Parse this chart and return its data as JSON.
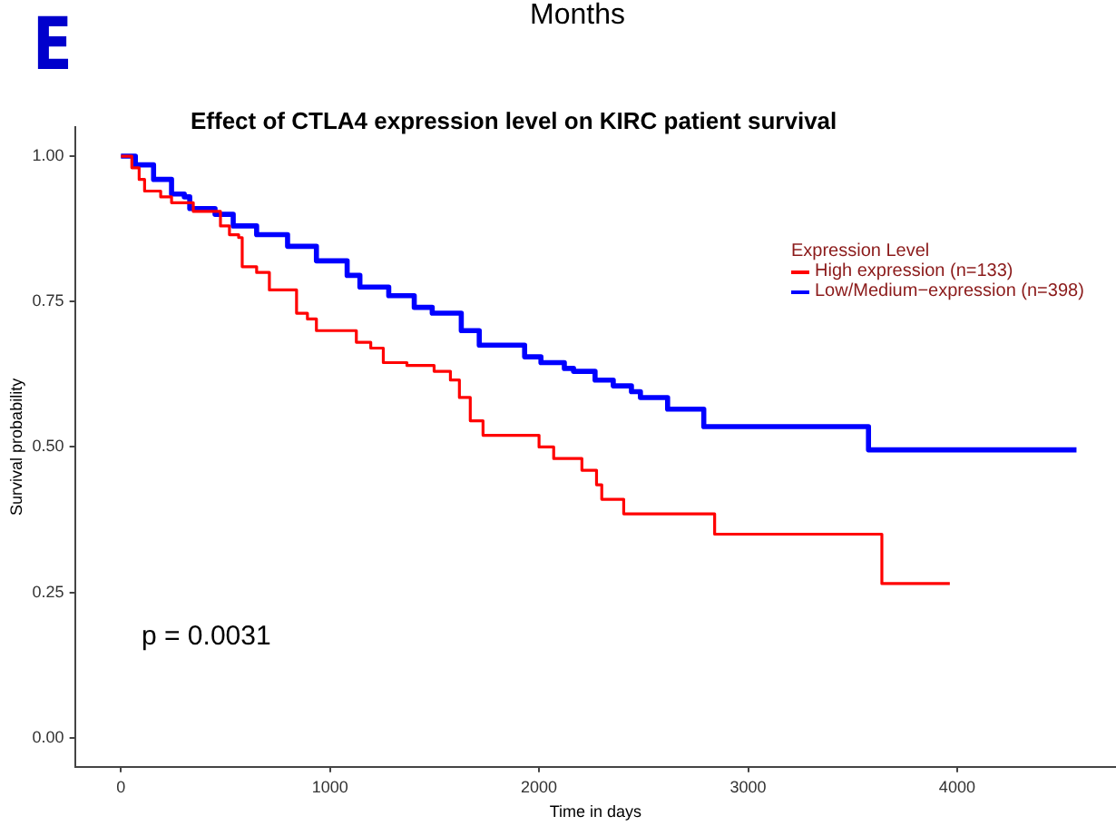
{
  "chart_data": {
    "type": "step",
    "title": "Effect of CTLA4 expression level on KIRC patient survival",
    "xlabel": "Time in days",
    "ylabel": "Survival probability",
    "legend_title": "Expression Level",
    "annotations": [
      "E",
      "Months",
      "p = 0.0031"
    ],
    "series": [
      {
        "name": "High expression (n=133)",
        "color": "#ff0000",
        "x": [
          0,
          52,
          87,
          113,
          190,
          242,
          346,
          476,
          519,
          563,
          580,
          649,
          710,
          840,
          892,
          935,
          1126,
          1195,
          1255,
          1368,
          1498,
          1576,
          1619,
          1671,
          1732,
          2000,
          2070,
          2205,
          2275,
          2300,
          2405,
          2840,
          3640,
          3965
        ],
        "values": [
          1.0,
          0.98,
          0.96,
          0.94,
          0.93,
          0.92,
          0.905,
          0.88,
          0.865,
          0.86,
          0.81,
          0.8,
          0.77,
          0.73,
          0.72,
          0.7,
          0.68,
          0.67,
          0.645,
          0.64,
          0.63,
          0.615,
          0.585,
          0.545,
          0.52,
          0.5,
          0.48,
          0.46,
          0.435,
          0.41,
          0.385,
          0.35,
          0.265,
          0.265
        ]
      },
      {
        "name": "Low/Medium−expression (n=398)",
        "color": "#0000ff",
        "x": [
          0,
          69,
          156,
          242,
          303,
          329,
          450,
          537,
          649,
          797,
          935,
          1082,
          1143,
          1281,
          1403,
          1489,
          1628,
          1714,
          1931,
          2009,
          2121,
          2165,
          2268,
          2355,
          2442,
          2485,
          2615,
          2788,
          3576,
          4571
        ],
        "values": [
          1.0,
          0.985,
          0.96,
          0.935,
          0.93,
          0.91,
          0.9,
          0.88,
          0.865,
          0.845,
          0.82,
          0.795,
          0.775,
          0.76,
          0.74,
          0.73,
          0.7,
          0.675,
          0.655,
          0.645,
          0.635,
          0.63,
          0.615,
          0.605,
          0.595,
          0.585,
          0.565,
          0.535,
          0.495,
          0.495
        ]
      }
    ],
    "xlim": [
      -220,
      4760
    ],
    "xticks": [
      0,
      1000,
      2000,
      3000,
      4000
    ],
    "ylim": [
      -0.05,
      1.05
    ],
    "yticks": [
      {
        "value": 0,
        "label": "0.00"
      },
      {
        "value": 0.25,
        "label": "0.25"
      },
      {
        "value": 0.5,
        "label": "0.50"
      },
      {
        "value": 0.75,
        "label": "0.75"
      },
      {
        "value": 1,
        "label": "1.00"
      }
    ],
    "grid": false,
    "legend": "top right"
  }
}
